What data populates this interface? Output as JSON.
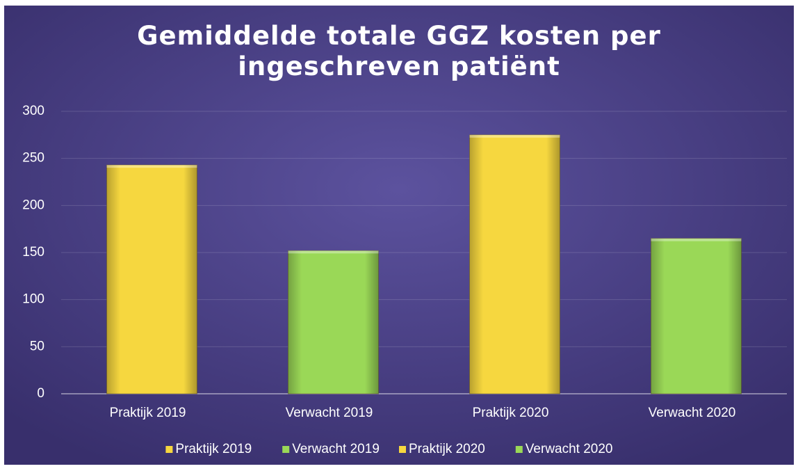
{
  "chart_data": {
    "type": "bar",
    "title": "Gemiddelde totale GGZ kosten per ingeschreven patiënt",
    "categories": [
      "Praktijk 2019",
      "Verwacht 2019",
      "Praktijk 2020",
      "Verwacht 2020"
    ],
    "values": [
      243,
      152,
      275,
      165
    ],
    "colors": [
      "#f6d73f",
      "#9ad857",
      "#f6d73f",
      "#9ad857"
    ],
    "ylim": [
      0,
      300
    ],
    "yticks": [
      0,
      50,
      100,
      150,
      200,
      250,
      300
    ],
    "grid": true,
    "legend": "bottom"
  }
}
